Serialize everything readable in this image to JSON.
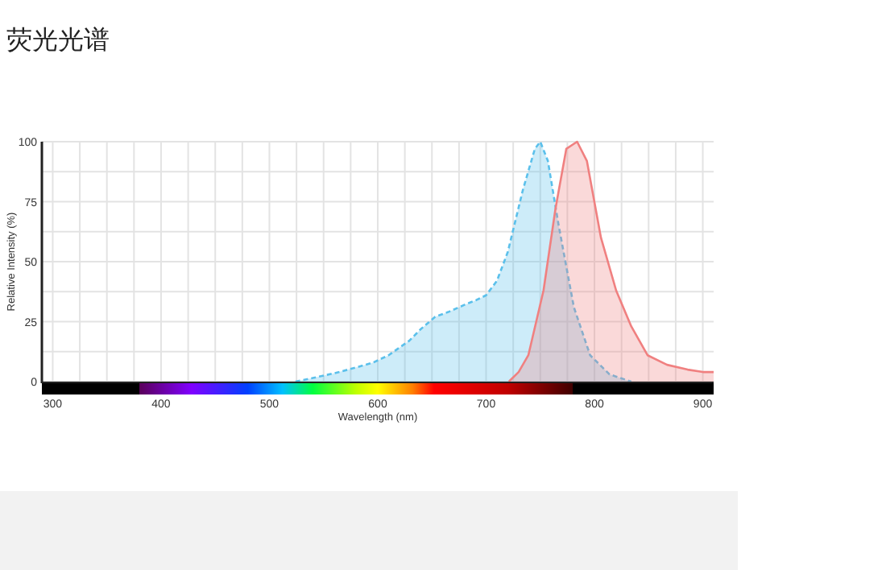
{
  "chart_data": {
    "type": "area",
    "title": "荧光光谱",
    "xlabel": "Wavelength (nm)",
    "ylabel": "Relative Intensity (%)",
    "xlim": [
      290,
      910
    ],
    "xticks": [
      300,
      400,
      500,
      600,
      700,
      800,
      900
    ],
    "ylim": [
      0,
      100
    ],
    "yticks": [
      0,
      25,
      50,
      75,
      100
    ],
    "grid": true,
    "series": [
      {
        "color": "#5bc0eb",
        "line_style": "dashed",
        "x": [
          524,
          540,
          560,
          581,
          596,
          610,
          629,
          640,
          653,
          665,
          680,
          691,
          700,
          710,
          720,
          734,
          745,
          750,
          757,
          767,
          781,
          796,
          814,
          834
        ],
        "values": [
          0,
          1.5,
          3.5,
          6,
          8,
          11,
          17,
          22,
          27,
          29,
          32,
          34,
          36,
          42,
          54,
          80,
          97,
          100,
          92,
          65,
          31,
          11,
          3,
          0
        ]
      },
      {
        "color": "#f08080",
        "line_style": "solid",
        "x": [
          721,
          730,
          739,
          753,
          764,
          774,
          784,
          793,
          806,
          820,
          834,
          849,
          867,
          886,
          900,
          910
        ],
        "values": [
          0,
          4,
          11,
          38,
          72,
          97,
          100,
          92,
          60,
          38,
          23,
          11,
          7,
          5,
          4,
          4
        ]
      }
    ]
  }
}
